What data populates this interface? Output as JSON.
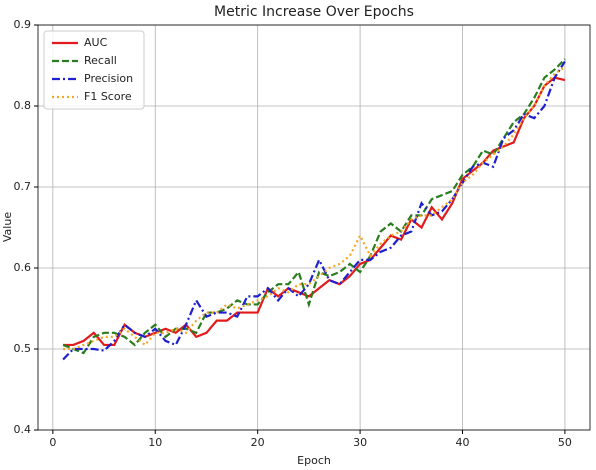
{
  "chart_data": {
    "type": "line",
    "title": "Metric Increase Over Epochs",
    "xlabel": "Epoch",
    "ylabel": "Value",
    "x": [
      1,
      2,
      3,
      4,
      5,
      6,
      7,
      8,
      9,
      10,
      11,
      12,
      13,
      14,
      15,
      16,
      17,
      18,
      19,
      20,
      21,
      22,
      23,
      24,
      25,
      26,
      27,
      28,
      29,
      30,
      31,
      32,
      33,
      34,
      35,
      36,
      37,
      38,
      39,
      40,
      41,
      42,
      43,
      44,
      45,
      46,
      47,
      48,
      49,
      50
    ],
    "series": [
      {
        "name": "AUC",
        "color": "#e31a1c",
        "linestyle": "solid",
        "values": [
          0.505,
          0.505,
          0.51,
          0.52,
          0.505,
          0.505,
          0.53,
          0.52,
          0.515,
          0.52,
          0.525,
          0.52,
          0.53,
          0.515,
          0.52,
          0.535,
          0.535,
          0.545,
          0.545,
          0.545,
          0.575,
          0.565,
          0.575,
          0.57,
          0.565,
          0.575,
          0.585,
          0.58,
          0.59,
          0.605,
          0.61,
          0.625,
          0.64,
          0.635,
          0.66,
          0.65,
          0.675,
          0.66,
          0.68,
          0.71,
          0.72,
          0.73,
          0.745,
          0.75,
          0.755,
          0.785,
          0.8,
          0.825,
          0.835,
          0.832
        ]
      },
      {
        "name": "Recall",
        "color": "#2a7d1e",
        "linestyle": "dashed",
        "values": [
          0.505,
          0.5,
          0.495,
          0.515,
          0.52,
          0.52,
          0.515,
          0.505,
          0.52,
          0.53,
          0.515,
          0.525,
          0.525,
          0.52,
          0.545,
          0.545,
          0.55,
          0.56,
          0.555,
          0.555,
          0.57,
          0.58,
          0.58,
          0.595,
          0.555,
          0.595,
          0.59,
          0.595,
          0.605,
          0.595,
          0.615,
          0.645,
          0.655,
          0.645,
          0.665,
          0.665,
          0.685,
          0.69,
          0.695,
          0.715,
          0.725,
          0.745,
          0.74,
          0.76,
          0.78,
          0.79,
          0.81,
          0.835,
          0.845,
          0.858
        ]
      },
      {
        "name": "Precision",
        "color": "#1f1fd0",
        "linestyle": "dashdot",
        "values": [
          0.487,
          0.5,
          0.5,
          0.5,
          0.498,
          0.51,
          0.53,
          0.52,
          0.515,
          0.525,
          0.51,
          0.505,
          0.53,
          0.56,
          0.54,
          0.545,
          0.545,
          0.54,
          0.565,
          0.565,
          0.575,
          0.56,
          0.575,
          0.565,
          0.58,
          0.61,
          0.585,
          0.58,
          0.595,
          0.61,
          0.61,
          0.62,
          0.625,
          0.64,
          0.645,
          0.68,
          0.665,
          0.67,
          0.685,
          0.705,
          0.725,
          0.73,
          0.725,
          0.76,
          0.77,
          0.79,
          0.785,
          0.8,
          0.835,
          0.855
        ]
      },
      {
        "name": "F1 Score",
        "color": "#f5a623",
        "linestyle": "dotted",
        "values": [
          0.5,
          0.5,
          0.505,
          0.51,
          0.515,
          0.515,
          0.525,
          0.515,
          0.505,
          0.52,
          0.52,
          0.525,
          0.52,
          0.535,
          0.545,
          0.545,
          0.555,
          0.55,
          0.555,
          0.56,
          0.565,
          0.575,
          0.57,
          0.58,
          0.58,
          0.59,
          0.6,
          0.605,
          0.615,
          0.64,
          0.615,
          0.63,
          0.64,
          0.645,
          0.66,
          0.665,
          0.665,
          0.675,
          0.685,
          0.705,
          0.715,
          0.73,
          0.74,
          0.75,
          0.765,
          0.785,
          0.8,
          0.825,
          0.84,
          0.848
        ]
      }
    ],
    "xlim": [
      -1.45,
      52.45
    ],
    "ylim": [
      0.4,
      0.9
    ],
    "xticks": [
      0,
      10,
      20,
      30,
      40,
      50
    ],
    "yticks": [
      0.4,
      0.5,
      0.6,
      0.7,
      0.8,
      0.9
    ],
    "grid": true,
    "legend": "upper left"
  }
}
